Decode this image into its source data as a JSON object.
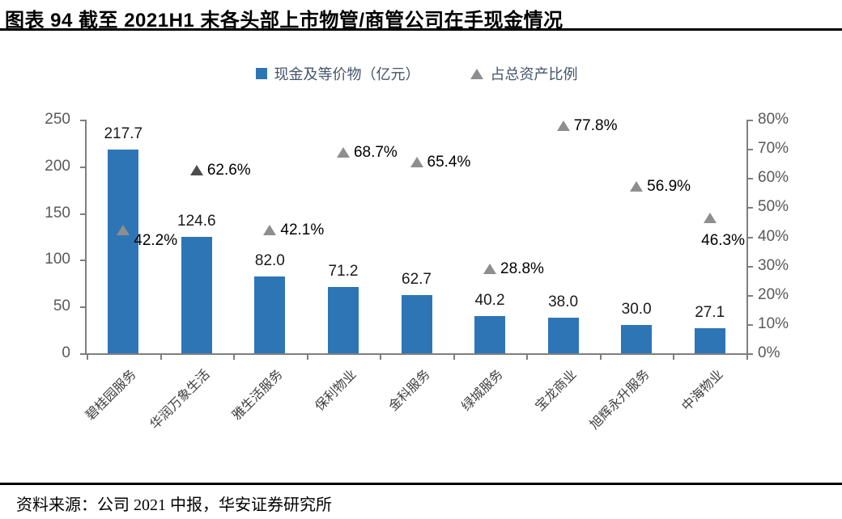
{
  "page": {
    "title": "图表 94 截至 2021H1 末各头部上市物管/商管公司在手现金情况",
    "source": "资料来源：公司 2021 中报，华安证券研究所"
  },
  "chart_data": {
    "type": "bar",
    "title": "截至2021H1末各头部上市物管/商管公司在手现金情况",
    "categories": [
      "碧桂园服务",
      "华润万象生活",
      "雅生活服务",
      "保利物业",
      "金科服务",
      "绿城服务",
      "宝龙商业",
      "旭辉永升服务",
      "中海物业"
    ],
    "series": [
      {
        "name": "现金及等价物（亿元）",
        "type": "bar",
        "axis": "left",
        "color": "#2e75b6",
        "values": [
          217.7,
          124.6,
          82.0,
          71.2,
          62.7,
          40.2,
          38.0,
          30.0,
          27.1
        ],
        "labels": [
          "217.7",
          "124.6",
          "82.0",
          "71.2",
          "62.7",
          "40.2",
          "38.0",
          "30.0",
          "27.1"
        ]
      },
      {
        "name": "占总资产比例",
        "type": "scatter",
        "marker": "triangle",
        "axis": "right",
        "color": "#8e8e8e",
        "values": [
          42.2,
          62.6,
          42.1,
          68.7,
          65.4,
          28.8,
          77.8,
          56.9,
          46.3
        ],
        "labels": [
          "42.2%",
          "62.6%",
          "42.1%",
          "68.7%",
          "65.4%",
          "28.8%",
          "77.8%",
          "56.9%",
          "46.3%"
        ],
        "point_colors": [
          "#8e8e8e",
          "#4d4d4d",
          "#8e8e8e",
          "#8e8e8e",
          "#8e8e8e",
          "#8e8e8e",
          "#8e8e8e",
          "#8e8e8e",
          "#8e8e8e"
        ],
        "label_placement": [
          "right-low",
          "right",
          "right",
          "right",
          "right",
          "right",
          "right",
          "right",
          "below"
        ]
      }
    ],
    "left_axis": {
      "min": 0,
      "max": 250,
      "step": 50,
      "ticks": [
        "0",
        "50",
        "100",
        "150",
        "200",
        "250"
      ]
    },
    "right_axis": {
      "min": 0,
      "max": 80,
      "step": 10,
      "ticks": [
        "0%",
        "10%",
        "20%",
        "30%",
        "40%",
        "50%",
        "60%",
        "70%",
        "80%"
      ]
    },
    "legend_position": "top-center",
    "grid": false
  }
}
